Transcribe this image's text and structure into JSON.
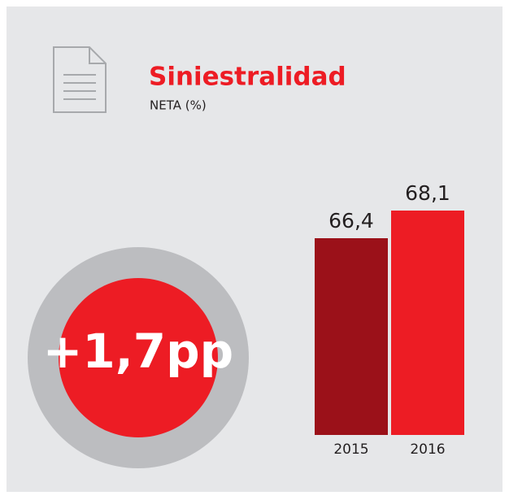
{
  "chart_data": {
    "type": "bar",
    "title": "Siniestralidad",
    "subtitle": "NETA (%)",
    "annotation": "+1,7pp",
    "categories": [
      "2015",
      "2016"
    ],
    "values": [
      66.4,
      68.1
    ],
    "value_labels": [
      "66,4",
      "68,1"
    ],
    "colors": [
      "#9b1119",
      "#ed1c24"
    ],
    "ylim": [
      54.3,
      70
    ]
  }
}
